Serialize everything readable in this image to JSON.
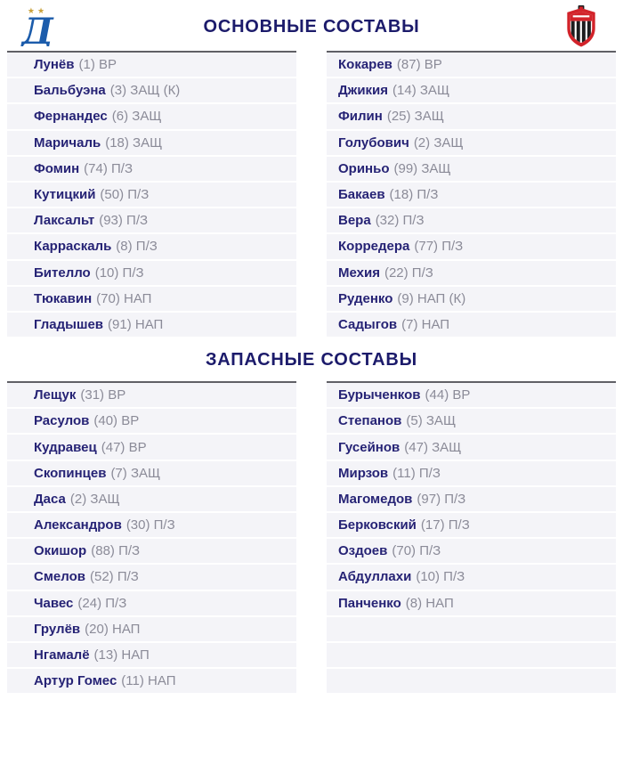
{
  "header": {
    "main_title": "ОСНОВНЫЕ СОСТАВЫ",
    "subs_title": "ЗАПАСНЫЕ СОСТАВЫ",
    "home_team_icon": "dynamo-moscow-crest",
    "away_team_icon": "fc-khimki-crest"
  },
  "colors": {
    "title_navy": "#1c1b6b",
    "name_navy": "#262375",
    "meta_gray": "#8b8b98",
    "row_bg": "#f4f4f8",
    "table_top_border": "#606066",
    "dynamo_blue": "#1c5cab",
    "star_gold": "#c9a13b",
    "khimki_red": "#d2232a",
    "stripe_black": "#1d1d1f"
  },
  "lineups": {
    "main": {
      "home": [
        {
          "name": "Лунёв",
          "number": 1,
          "position": "ВР",
          "captain": false
        },
        {
          "name": "Бальбуэна",
          "number": 3,
          "position": "ЗАЩ",
          "captain": true
        },
        {
          "name": "Фернандес",
          "number": 6,
          "position": "ЗАЩ",
          "captain": false
        },
        {
          "name": "Маричаль",
          "number": 18,
          "position": "ЗАЩ",
          "captain": false
        },
        {
          "name": "Фомин",
          "number": 74,
          "position": "П/З",
          "captain": false
        },
        {
          "name": "Кутицкий",
          "number": 50,
          "position": "П/З",
          "captain": false
        },
        {
          "name": "Лаксальт",
          "number": 93,
          "position": "П/З",
          "captain": false
        },
        {
          "name": "Карраскаль",
          "number": 8,
          "position": "П/З",
          "captain": false
        },
        {
          "name": "Бителло",
          "number": 10,
          "position": "П/З",
          "captain": false
        },
        {
          "name": "Тюкавин",
          "number": 70,
          "position": "НАП",
          "captain": false
        },
        {
          "name": "Гладышев",
          "number": 91,
          "position": "НАП",
          "captain": false
        }
      ],
      "away": [
        {
          "name": "Кокарев",
          "number": 87,
          "position": "ВР",
          "captain": false
        },
        {
          "name": "Джикия",
          "number": 14,
          "position": "ЗАЩ",
          "captain": false
        },
        {
          "name": "Филин",
          "number": 25,
          "position": "ЗАЩ",
          "captain": false
        },
        {
          "name": "Голубович",
          "number": 2,
          "position": "ЗАЩ",
          "captain": false
        },
        {
          "name": "Ориньо",
          "number": 99,
          "position": "ЗАЩ",
          "captain": false
        },
        {
          "name": "Бакаев",
          "number": 18,
          "position": "П/З",
          "captain": false
        },
        {
          "name": "Вера",
          "number": 32,
          "position": "П/З",
          "captain": false
        },
        {
          "name": "Корредера",
          "number": 77,
          "position": "П/З",
          "captain": false
        },
        {
          "name": "Мехия",
          "number": 22,
          "position": "П/З",
          "captain": false
        },
        {
          "name": "Руденко",
          "number": 9,
          "position": "НАП",
          "captain": true
        },
        {
          "name": "Садыгов",
          "number": 7,
          "position": "НАП",
          "captain": false
        }
      ]
    },
    "subs": {
      "home": [
        {
          "name": "Лещук",
          "number": 31,
          "position": "ВР",
          "captain": false
        },
        {
          "name": "Расулов",
          "number": 40,
          "position": "ВР",
          "captain": false
        },
        {
          "name": "Кудравец",
          "number": 47,
          "position": "ВР",
          "captain": false
        },
        {
          "name": "Скопинцев",
          "number": 7,
          "position": "ЗАЩ",
          "captain": false
        },
        {
          "name": "Даса",
          "number": 2,
          "position": "ЗАЩ",
          "captain": false
        },
        {
          "name": "Александров",
          "number": 30,
          "position": "П/З",
          "captain": false
        },
        {
          "name": "Окишор",
          "number": 88,
          "position": "П/З",
          "captain": false
        },
        {
          "name": "Смелов",
          "number": 52,
          "position": "П/З",
          "captain": false
        },
        {
          "name": "Чавес",
          "number": 24,
          "position": "П/З",
          "captain": false
        },
        {
          "name": "Грулёв",
          "number": 20,
          "position": "НАП",
          "captain": false
        },
        {
          "name": "Нгамалё",
          "number": 13,
          "position": "НАП",
          "captain": false
        },
        {
          "name": "Артур Гомес",
          "number": 11,
          "position": "НАП",
          "captain": false
        }
      ],
      "away": [
        {
          "name": "Бурыченков",
          "number": 44,
          "position": "ВР",
          "captain": false
        },
        {
          "name": "Степанов",
          "number": 5,
          "position": "ЗАЩ",
          "captain": false
        },
        {
          "name": "Гусейнов",
          "number": 47,
          "position": "ЗАЩ",
          "captain": false
        },
        {
          "name": "Мирзов",
          "number": 11,
          "position": "П/З",
          "captain": false
        },
        {
          "name": "Магомедов",
          "number": 97,
          "position": "П/З",
          "captain": false
        },
        {
          "name": "Берковский",
          "number": 17,
          "position": "П/З",
          "captain": false
        },
        {
          "name": "Оздоев",
          "number": 70,
          "position": "П/З",
          "captain": false
        },
        {
          "name": "Абдуллахи",
          "number": 10,
          "position": "П/З",
          "captain": false
        },
        {
          "name": "Панченко",
          "number": 8,
          "position": "НАП",
          "captain": false
        }
      ]
    }
  }
}
